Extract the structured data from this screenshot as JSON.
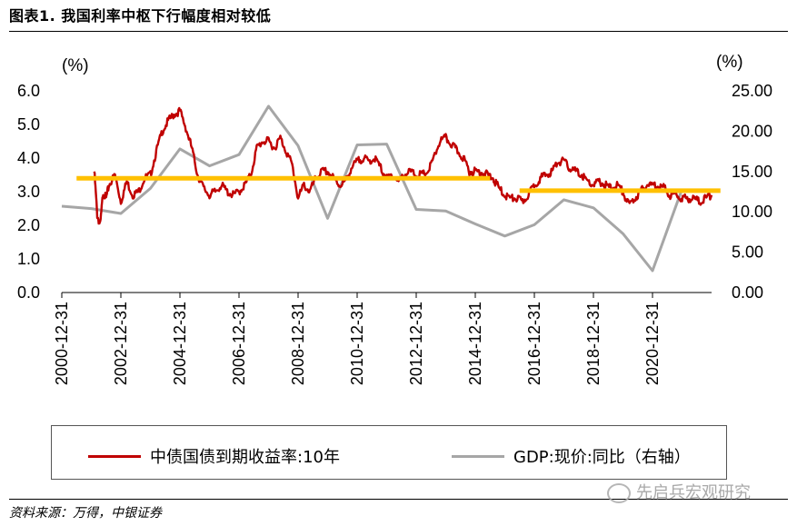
{
  "figure_title": "图表1. 我国利率中枢下行幅度相对较低",
  "source": "资料来源：万得，中银证券",
  "watermark": "先启兵宏观研究",
  "chart_data": {
    "type": "line",
    "title": "",
    "left_axis": {
      "unit_label": "(%)",
      "range": [
        0,
        6.0
      ],
      "ticks": [
        "0.0",
        "1.0",
        "2.0",
        "3.0",
        "4.0",
        "5.0",
        "6.0"
      ]
    },
    "right_axis": {
      "unit_label": "(%)",
      "range": [
        0,
        25.0
      ],
      "ticks": [
        "0.00",
        "5.00",
        "10.00",
        "15.00",
        "20.00",
        "25.00"
      ]
    },
    "x_range": [
      2001.0,
      2023.0
    ],
    "x_ticks": [
      "2000-12-31",
      "2002-12-31",
      "2004-12-31",
      "2006-12-31",
      "2008-12-31",
      "2010-12-31",
      "2012-12-31",
      "2014-12-31",
      "2016-12-31",
      "2018-12-31",
      "2020-12-31"
    ],
    "legend_position": "bottom",
    "colors": {
      "bond": "#C00000",
      "gdp": "#A6A6A6",
      "avg": "#FFC000"
    },
    "series": [
      {
        "name": "中债国债到期收益率:10年",
        "axis": "left",
        "points": [
          [
            2002.1,
            3.6
          ],
          [
            2002.2,
            2.3
          ],
          [
            2002.3,
            2.0
          ],
          [
            2002.4,
            3.0
          ],
          [
            2002.5,
            2.8
          ],
          [
            2002.6,
            3.2
          ],
          [
            2002.8,
            3.5
          ],
          [
            2003.0,
            2.7
          ],
          [
            2003.2,
            3.3
          ],
          [
            2003.4,
            2.9
          ],
          [
            2003.6,
            3.0
          ],
          [
            2003.8,
            3.4
          ],
          [
            2004.0,
            3.5
          ],
          [
            2004.2,
            4.2
          ],
          [
            2004.4,
            4.8
          ],
          [
            2004.6,
            5.1
          ],
          [
            2004.8,
            5.3
          ],
          [
            2005.0,
            5.4
          ],
          [
            2005.2,
            4.9
          ],
          [
            2005.4,
            4.3
          ],
          [
            2005.6,
            3.5
          ],
          [
            2005.8,
            3.1
          ],
          [
            2006.0,
            2.9
          ],
          [
            2006.2,
            3.0
          ],
          [
            2006.4,
            3.2
          ],
          [
            2006.6,
            3.0
          ],
          [
            2006.8,
            2.9
          ],
          [
            2007.0,
            3.0
          ],
          [
            2007.2,
            3.2
          ],
          [
            2007.4,
            3.5
          ],
          [
            2007.6,
            4.3
          ],
          [
            2007.8,
            4.5
          ],
          [
            2008.0,
            4.5
          ],
          [
            2008.2,
            4.3
          ],
          [
            2008.4,
            4.6
          ],
          [
            2008.6,
            4.2
          ],
          [
            2008.8,
            3.8
          ],
          [
            2009.0,
            2.8
          ],
          [
            2009.2,
            3.2
          ],
          [
            2009.4,
            3.0
          ],
          [
            2009.6,
            3.4
          ],
          [
            2009.8,
            3.6
          ],
          [
            2010.0,
            3.6
          ],
          [
            2010.2,
            3.4
          ],
          [
            2010.4,
            3.2
          ],
          [
            2010.6,
            3.3
          ],
          [
            2010.8,
            3.7
          ],
          [
            2011.0,
            3.9
          ],
          [
            2011.2,
            4.0
          ],
          [
            2011.4,
            3.9
          ],
          [
            2011.6,
            4.0
          ],
          [
            2011.8,
            3.7
          ],
          [
            2012.0,
            3.4
          ],
          [
            2012.2,
            3.5
          ],
          [
            2012.4,
            3.3
          ],
          [
            2012.6,
            3.5
          ],
          [
            2012.8,
            3.6
          ],
          [
            2013.0,
            3.5
          ],
          [
            2013.2,
            3.5
          ],
          [
            2013.4,
            3.6
          ],
          [
            2013.6,
            4.0
          ],
          [
            2013.8,
            4.5
          ],
          [
            2014.0,
            4.6
          ],
          [
            2014.2,
            4.4
          ],
          [
            2014.4,
            4.2
          ],
          [
            2014.6,
            4.0
          ],
          [
            2014.8,
            3.6
          ],
          [
            2015.0,
            3.6
          ],
          [
            2015.2,
            3.6
          ],
          [
            2015.4,
            3.5
          ],
          [
            2015.6,
            3.4
          ],
          [
            2015.8,
            3.1
          ],
          [
            2016.0,
            2.9
          ],
          [
            2016.2,
            2.8
          ],
          [
            2016.4,
            2.8
          ],
          [
            2016.6,
            2.7
          ],
          [
            2016.8,
            2.9
          ],
          [
            2017.0,
            3.2
          ],
          [
            2017.2,
            3.4
          ],
          [
            2017.4,
            3.5
          ],
          [
            2017.6,
            3.6
          ],
          [
            2017.8,
            3.9
          ],
          [
            2018.0,
            3.9
          ],
          [
            2018.2,
            3.7
          ],
          [
            2018.4,
            3.6
          ],
          [
            2018.6,
            3.5
          ],
          [
            2018.8,
            3.3
          ],
          [
            2019.0,
            3.2
          ],
          [
            2019.2,
            3.3
          ],
          [
            2019.4,
            3.2
          ],
          [
            2019.6,
            3.1
          ],
          [
            2019.8,
            3.2
          ],
          [
            2020.0,
            3.0
          ],
          [
            2020.2,
            2.6
          ],
          [
            2020.4,
            2.8
          ],
          [
            2020.6,
            3.0
          ],
          [
            2020.8,
            3.2
          ],
          [
            2021.0,
            3.2
          ],
          [
            2021.2,
            3.2
          ],
          [
            2021.4,
            3.1
          ],
          [
            2021.6,
            2.9
          ],
          [
            2021.8,
            2.9
          ],
          [
            2022.0,
            2.8
          ],
          [
            2022.2,
            2.8
          ],
          [
            2022.4,
            2.8
          ],
          [
            2022.6,
            2.7
          ],
          [
            2022.8,
            2.8
          ],
          [
            2023.0,
            2.9
          ]
        ]
      },
      {
        "name": "GDP:现价:同比（右轴）",
        "axis": "right",
        "points": [
          [
            2001.0,
            10.7
          ],
          [
            2002.0,
            10.4
          ],
          [
            2003.0,
            9.8
          ],
          [
            2004.0,
            12.9
          ],
          [
            2005.0,
            17.8
          ],
          [
            2006.0,
            15.7
          ],
          [
            2007.0,
            17.1
          ],
          [
            2008.0,
            23.1
          ],
          [
            2009.0,
            18.2
          ],
          [
            2010.0,
            9.2
          ],
          [
            2011.0,
            18.3
          ],
          [
            2012.0,
            18.4
          ],
          [
            2013.0,
            10.3
          ],
          [
            2014.0,
            10.1
          ],
          [
            2015.0,
            8.5
          ],
          [
            2016.0,
            7.0
          ],
          [
            2017.0,
            8.4
          ],
          [
            2018.0,
            11.5
          ],
          [
            2019.0,
            10.5
          ],
          [
            2020.0,
            7.3
          ],
          [
            2021.0,
            2.7
          ],
          [
            2022.0,
            12.8
          ]
        ]
      }
    ],
    "averages": [
      {
        "x0": 2001.5,
        "x1": 2015.5,
        "y": 3.4,
        "axis": "left"
      },
      {
        "x0": 2016.5,
        "x1": 2023.3,
        "y": 3.03,
        "axis": "left"
      }
    ]
  }
}
